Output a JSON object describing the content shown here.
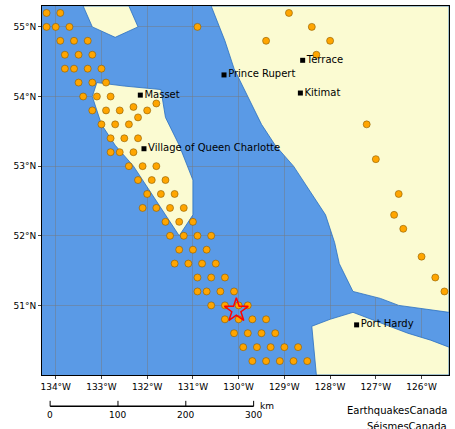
{
  "chart_data": {
    "type": "map",
    "xlim": [
      -134.3,
      -125.4
    ],
    "ylim": [
      50.0,
      55.3
    ],
    "xticks": [
      {
        "value": -134,
        "label": "134°W"
      },
      {
        "value": -133,
        "label": "133°W"
      },
      {
        "value": -132,
        "label": "132°W"
      },
      {
        "value": -131,
        "label": "131°W"
      },
      {
        "value": -130,
        "label": "130°W"
      },
      {
        "value": -129,
        "label": "129°W"
      },
      {
        "value": -128,
        "label": "128°W"
      },
      {
        "value": -127,
        "label": "127°W"
      },
      {
        "value": -126,
        "label": "126°W"
      }
    ],
    "yticks": [
      {
        "value": 51,
        "label": "51°N"
      },
      {
        "value": 52,
        "label": "52°N"
      },
      {
        "value": 53,
        "label": "53°N"
      },
      {
        "value": 54,
        "label": "54°N"
      },
      {
        "value": 55,
        "label": "55°N"
      }
    ],
    "grid": true,
    "land": [
      {
        "lon": [
          -133.1,
          -132.5,
          -131.7,
          -131.6,
          -131.3,
          -131.0,
          -131.0,
          -131.3,
          -131.6,
          -132.0,
          -132.3,
          -132.7,
          -133.0,
          -133.2,
          -133.1
        ],
        "lat": [
          54.2,
          54.15,
          54.1,
          53.7,
          53.3,
          52.8,
          52.3,
          52.0,
          52.3,
          52.7,
          53.0,
          53.3,
          53.6,
          54.0,
          54.2
        ]
      },
      {
        "lon": [
          -130.6,
          -130.3,
          -130.1,
          -129.5,
          -129.2,
          -128.8,
          -128.4,
          -128.1,
          -127.9,
          -127.8,
          -127.5,
          -126.9,
          -126.5,
          -125.9,
          -125.4,
          -125.4,
          -130.6
        ],
        "lat": [
          55.3,
          54.8,
          54.4,
          53.6,
          53.3,
          53.0,
          52.6,
          52.3,
          51.9,
          51.6,
          51.2,
          51.1,
          51.0,
          50.95,
          50.9,
          55.3,
          55.3
        ]
      },
      {
        "lon": [
          -128.4,
          -128.0,
          -127.5,
          -126.9,
          -126.3,
          -125.8,
          -125.4,
          -125.4,
          -128.3,
          -128.4
        ],
        "lat": [
          50.7,
          50.8,
          50.9,
          50.75,
          50.6,
          50.5,
          50.4,
          50.0,
          50.0,
          50.7
        ]
      },
      {
        "lon": [
          -133.4,
          -132.4,
          -132.2,
          -132.7,
          -133.2,
          -133.4
        ],
        "lat": [
          55.3,
          55.3,
          55.0,
          54.85,
          55.0,
          55.3
        ]
      }
    ],
    "earthquakes": {
      "color": "#ffa500",
      "marker": "circle",
      "points": [
        [
          -134.2,
          55.2
        ],
        [
          -133.9,
          55.2
        ],
        [
          -134.0,
          55.0
        ],
        [
          -133.7,
          55.0
        ],
        [
          -134.2,
          55.0
        ],
        [
          -133.9,
          54.8
        ],
        [
          -133.6,
          54.8
        ],
        [
          -133.3,
          54.8
        ],
        [
          -133.8,
          54.6
        ],
        [
          -133.5,
          54.6
        ],
        [
          -133.2,
          54.6
        ],
        [
          -133.6,
          54.4
        ],
        [
          -133.3,
          54.4
        ],
        [
          -133.0,
          54.4
        ],
        [
          -133.8,
          54.4
        ],
        [
          -133.5,
          54.2
        ],
        [
          -133.2,
          54.2
        ],
        [
          -132.9,
          54.2
        ],
        [
          -133.4,
          54.0
        ],
        [
          -133.1,
          54.0
        ],
        [
          -132.8,
          54.0
        ],
        [
          -133.2,
          53.8
        ],
        [
          -132.9,
          53.8
        ],
        [
          -132.6,
          53.8
        ],
        [
          -132.3,
          53.85
        ],
        [
          -132.0,
          53.8
        ],
        [
          -131.8,
          53.9
        ],
        [
          -132.2,
          53.7
        ],
        [
          -133.0,
          53.6
        ],
        [
          -132.7,
          53.6
        ],
        [
          -132.4,
          53.6
        ],
        [
          -132.8,
          53.4
        ],
        [
          -132.5,
          53.4
        ],
        [
          -132.2,
          53.4
        ],
        [
          -132.6,
          53.2
        ],
        [
          -132.3,
          53.2
        ],
        [
          -132.8,
          53.2
        ],
        [
          -132.4,
          53.0
        ],
        [
          -132.1,
          53.0
        ],
        [
          -131.8,
          53.0
        ],
        [
          -132.2,
          52.8
        ],
        [
          -131.9,
          52.8
        ],
        [
          -131.6,
          52.8
        ],
        [
          -132.0,
          52.6
        ],
        [
          -131.7,
          52.6
        ],
        [
          -131.4,
          52.6
        ],
        [
          -131.8,
          52.4
        ],
        [
          -131.5,
          52.4
        ],
        [
          -131.2,
          52.4
        ],
        [
          -132.1,
          52.4
        ],
        [
          -131.6,
          52.2
        ],
        [
          -131.3,
          52.2
        ],
        [
          -131.0,
          52.2
        ],
        [
          -131.5,
          52.0
        ],
        [
          -131.2,
          52.0
        ],
        [
          -130.9,
          52.0
        ],
        [
          -130.6,
          52.0
        ],
        [
          -131.3,
          51.8
        ],
        [
          -131.0,
          51.8
        ],
        [
          -130.7,
          51.8
        ],
        [
          -131.1,
          51.6
        ],
        [
          -130.8,
          51.6
        ],
        [
          -130.5,
          51.6
        ],
        [
          -131.4,
          51.6
        ],
        [
          -130.9,
          51.4
        ],
        [
          -130.6,
          51.4
        ],
        [
          -130.3,
          51.4
        ],
        [
          -130.7,
          51.2
        ],
        [
          -130.4,
          51.2
        ],
        [
          -130.1,
          51.2
        ],
        [
          -130.9,
          51.2
        ],
        [
          -130.6,
          51.0
        ],
        [
          -130.3,
          51.0
        ],
        [
          -130.0,
          51.0
        ],
        [
          -129.8,
          51.0
        ],
        [
          -130.3,
          50.8
        ],
        [
          -130.0,
          50.8
        ],
        [
          -129.7,
          50.8
        ],
        [
          -129.4,
          50.8
        ],
        [
          -130.1,
          50.6
        ],
        [
          -129.8,
          50.6
        ],
        [
          -129.5,
          50.6
        ],
        [
          -129.2,
          50.6
        ],
        [
          -129.9,
          50.4
        ],
        [
          -129.6,
          50.4
        ],
        [
          -129.3,
          50.4
        ],
        [
          -129.0,
          50.4
        ],
        [
          -128.7,
          50.4
        ],
        [
          -129.7,
          50.2
        ],
        [
          -129.4,
          50.2
        ],
        [
          -129.1,
          50.2
        ],
        [
          -128.8,
          50.2
        ],
        [
          -128.5,
          50.2
        ],
        [
          -128.9,
          55.2
        ],
        [
          -128.4,
          55.0
        ],
        [
          -128.0,
          54.8
        ],
        [
          -128.3,
          54.6
        ],
        [
          -127.2,
          53.6
        ],
        [
          -127.0,
          53.1
        ],
        [
          -126.5,
          52.6
        ],
        [
          -126.6,
          52.3
        ],
        [
          -126.4,
          52.1
        ],
        [
          -126.0,
          51.7
        ],
        [
          -125.7,
          51.4
        ],
        [
          -125.5,
          51.2
        ],
        [
          -129.4,
          54.8
        ],
        [
          -130.9,
          55.0
        ]
      ]
    },
    "epicenter": {
      "lon": -130.05,
      "lat": 50.93,
      "color": "#ff0000",
      "marker": "star-open"
    },
    "places": [
      {
        "name": "Terrace",
        "lon": -128.6,
        "lat": 54.52
      },
      {
        "name": "Prince Rupert",
        "lon": -130.32,
        "lat": 54.31
      },
      {
        "name": "Kitimat",
        "lon": -128.65,
        "lat": 54.05
      },
      {
        "name": "Masset",
        "lon": -132.15,
        "lat": 54.02
      },
      {
        "name": "Village of Queen Charlotte",
        "lon": -132.07,
        "lat": 53.25
      },
      {
        "name": "Port Hardy",
        "lon": -127.42,
        "lat": 50.72
      }
    ],
    "scale_bar": {
      "ticks": [
        0,
        100,
        200,
        300
      ],
      "unit": "km"
    },
    "credits": [
      "EarthquakesCanada",
      "SéismesCanada"
    ]
  }
}
